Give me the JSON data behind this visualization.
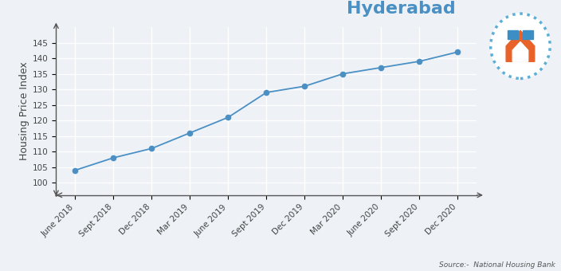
{
  "x_labels": [
    "June 2018",
    "Sept 2018",
    "Dec 2018",
    "Mar 2019",
    "June 2019",
    "Sept 2019",
    "Dec 2019",
    "Mar 2020",
    "June 2020",
    "Sept 2020",
    "Dec 2020"
  ],
  "y_values": [
    104,
    108,
    111,
    116,
    121,
    129,
    131,
    135,
    137,
    139,
    142
  ],
  "title": "Hyderabad",
  "ylabel": "Housing Price Index",
  "ylim": [
    96,
    150
  ],
  "yticks": [
    100,
    105,
    110,
    115,
    120,
    125,
    130,
    135,
    140,
    145
  ],
  "line_color": "#4a90c4",
  "marker_color": "#4a90c4",
  "bg_color": "#eef2f7",
  "grid_color": "#ffffff",
  "title_color": "#4a90c4",
  "source_text": "Source:-  National Housing Bank",
  "title_fontsize": 16,
  "ylabel_fontsize": 9,
  "tick_fontsize": 7.5,
  "source_fontsize": 6.5
}
